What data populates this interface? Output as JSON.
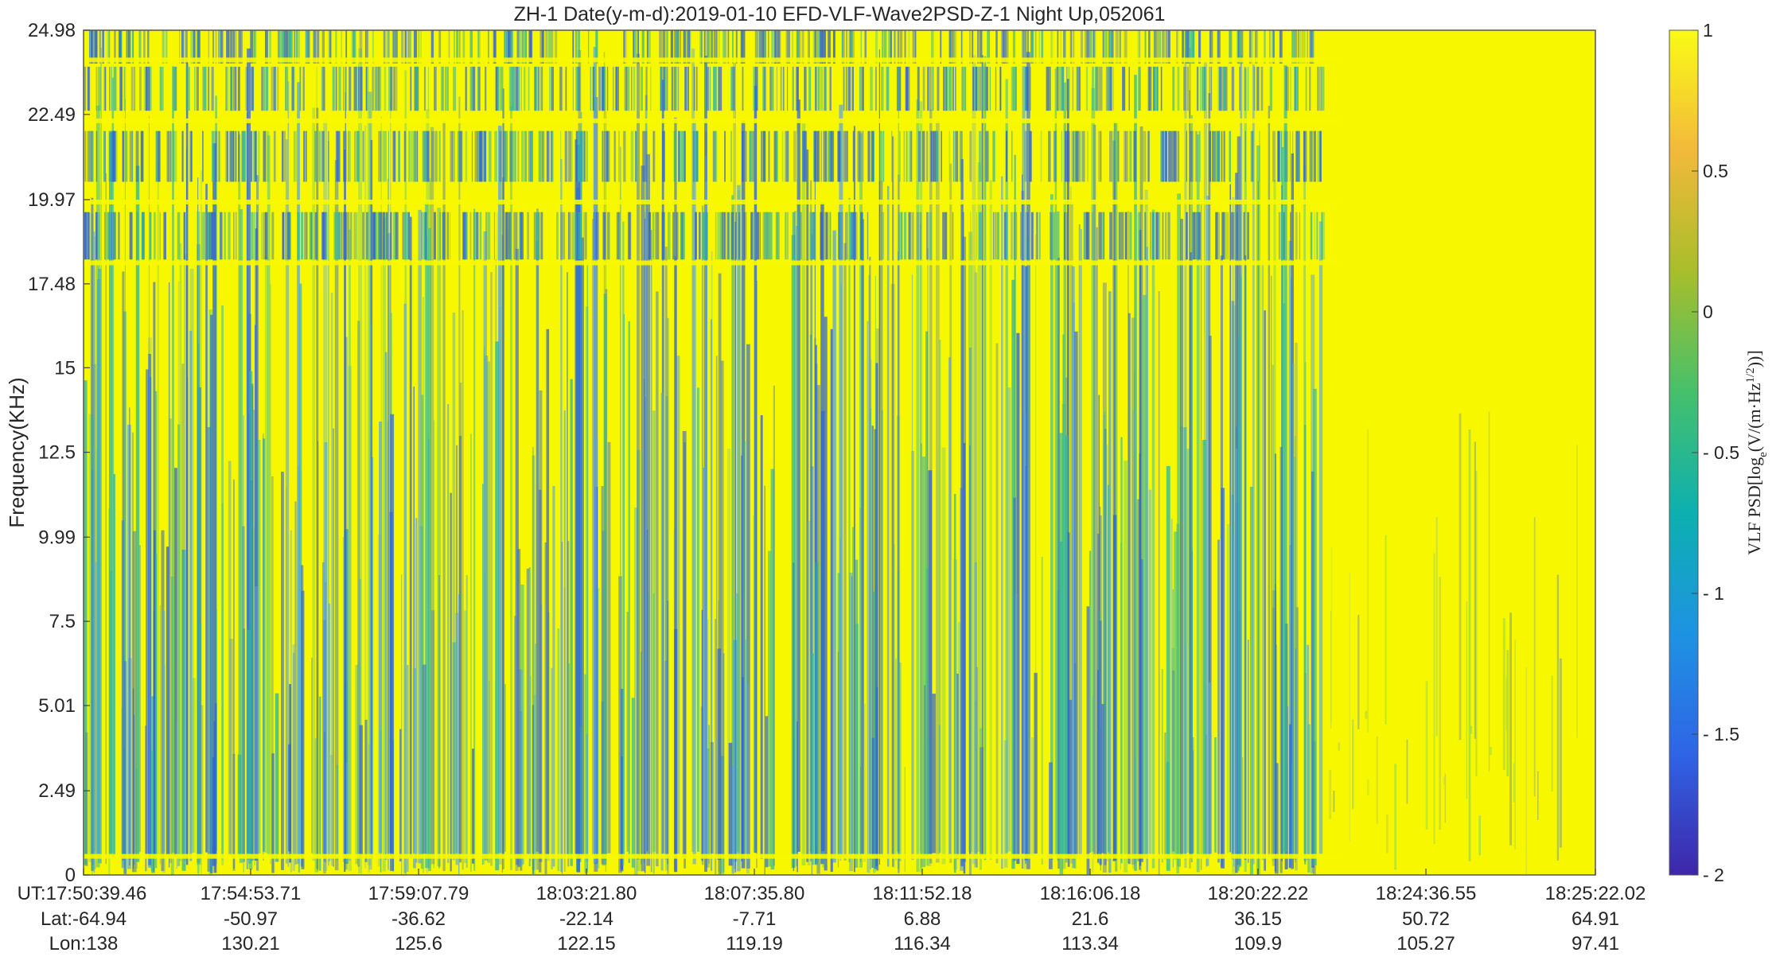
{
  "chart_data": {
    "type": "heatmap",
    "title": "ZH-1  Date(y-m-d):2019-01-10  EFD-VLF-Wave2PSD-Z-1 Night Up,052061",
    "ylabel": "Frequency(KHz)",
    "ylim": [
      0,
      24.98
    ],
    "y_ticks": [
      "0",
      "2.49",
      "5.01",
      "7.5",
      "9.99",
      "12.5",
      "15",
      "17.48",
      "19.97",
      "22.49",
      "24.98"
    ],
    "x_ticks_ut": [
      "UT:17:50:39.46",
      "17:54:53.71",
      "17:59:07.79",
      "18:03:21.80",
      "18:07:35.80",
      "18:11:52.18",
      "18:16:06.18",
      "18:20:22.22",
      "18:24:36.55",
      "18:25:22.02"
    ],
    "x_ticks_lat": [
      "Lat:-64.94",
      "-50.97",
      "-36.62",
      "-22.14",
      "-7.71",
      "6.88",
      "21.6",
      "36.15",
      "50.72",
      "64.91"
    ],
    "x_ticks_lon": [
      "Lon:138",
      "130.21",
      "125.6",
      "122.15",
      "119.19",
      "116.34",
      "113.34",
      "109.9",
      "105.27",
      "97.41"
    ],
    "colorbar": {
      "label": "VLF PSD[log",
      "label_sub": "e",
      "label_mid": "(V/(m·Hz",
      "label_sup": "1/2",
      "label_end": "))]",
      "range": [
        -2,
        1
      ],
      "ticks": [
        "1",
        "0.5",
        "0",
        "- 0.5",
        "- 1",
        "- 1.5",
        "- 2"
      ],
      "colormap": [
        "#3e26a8",
        "#2f64e6",
        "#1e93e2",
        "#0cb0b0",
        "#46c06b",
        "#a8be2a",
        "#f2b93b",
        "#f9fb15"
      ]
    },
    "colors": {
      "low": "#2f63d9",
      "mid": "#2fb7a0",
      "high": "#f7f700"
    },
    "grid": false
  }
}
